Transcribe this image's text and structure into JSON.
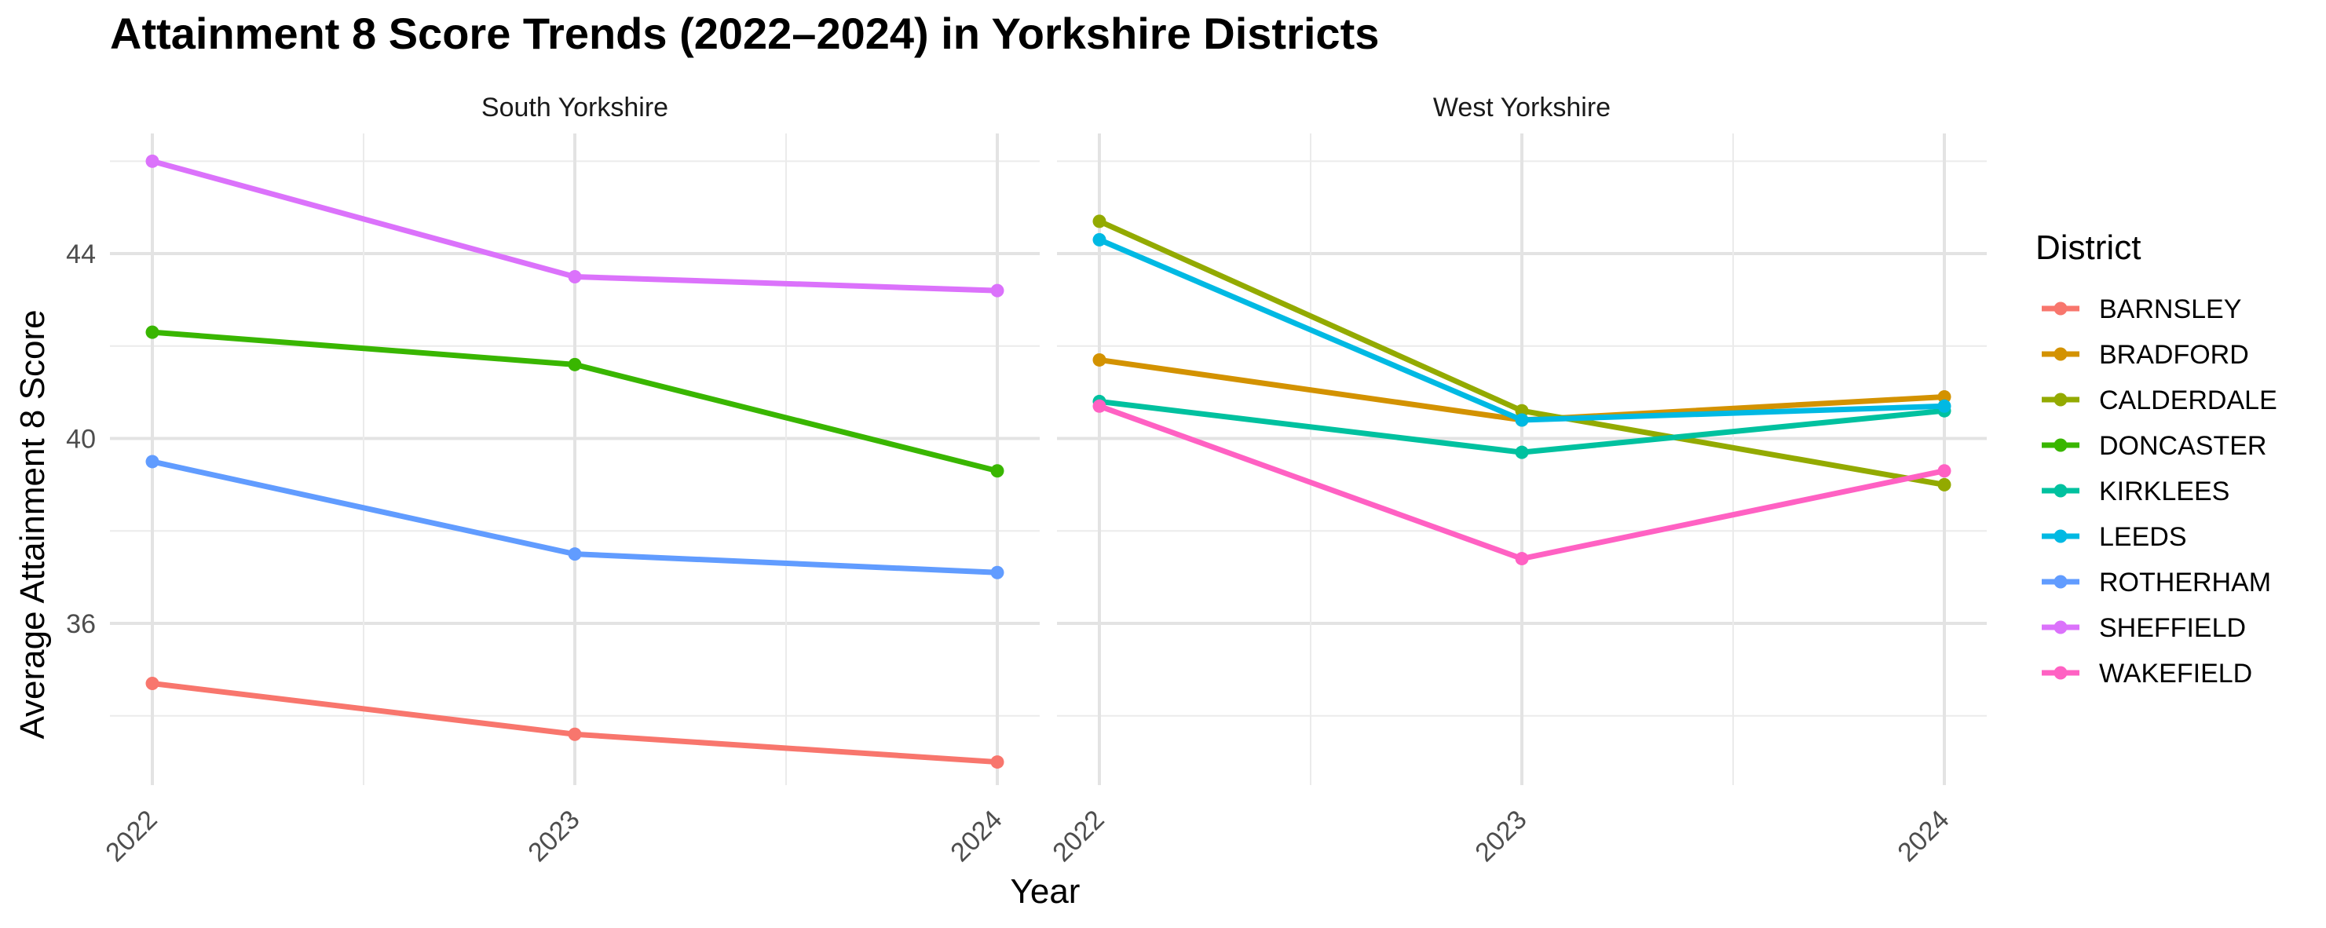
{
  "chart_data": {
    "type": "line",
    "title": "Attainment 8 Score Trends (2022–2024) in Yorkshire Districts",
    "xlabel": "Year",
    "ylabel": "Average Attainment 8 Score",
    "x": [
      "2022",
      "2023",
      "2024"
    ],
    "ylim": [
      32.5,
      46.6
    ],
    "yticks": [
      36,
      40,
      44
    ],
    "grid": true,
    "legend": {
      "title": "District",
      "position": "right"
    },
    "panels": [
      {
        "name": "South Yorkshire",
        "series": [
          {
            "name": "BARNSLEY",
            "color": "#F8766D",
            "values": [
              34.7,
              33.6,
              33.0
            ]
          },
          {
            "name": "DONCASTER",
            "color": "#39B600",
            "values": [
              42.3,
              41.6,
              39.3
            ]
          },
          {
            "name": "ROTHERHAM",
            "color": "#619CFF",
            "values": [
              39.5,
              37.5,
              37.1
            ]
          },
          {
            "name": "SHEFFIELD",
            "color": "#DB72FB",
            "values": [
              46.0,
              43.5,
              43.2
            ]
          }
        ]
      },
      {
        "name": "West Yorkshire",
        "series": [
          {
            "name": "BRADFORD",
            "color": "#D39200",
            "values": [
              41.7,
              40.4,
              40.9
            ]
          },
          {
            "name": "CALDERDALE",
            "color": "#93AA00",
            "values": [
              44.7,
              40.6,
              39.0
            ]
          },
          {
            "name": "KIRKLEES",
            "color": "#00C19F",
            "values": [
              40.8,
              39.7,
              40.6
            ]
          },
          {
            "name": "LEEDS",
            "color": "#00B9E3",
            "values": [
              44.3,
              40.4,
              40.7
            ]
          },
          {
            "name": "WAKEFIELD",
            "color": "#FF61C3",
            "values": [
              40.7,
              37.4,
              39.3
            ]
          }
        ]
      }
    ],
    "legend_order": [
      "BARNSLEY",
      "BRADFORD",
      "CALDERDALE",
      "DONCASTER",
      "KIRKLEES",
      "LEEDS",
      "ROTHERHAM",
      "SHEFFIELD",
      "WAKEFIELD"
    ]
  }
}
